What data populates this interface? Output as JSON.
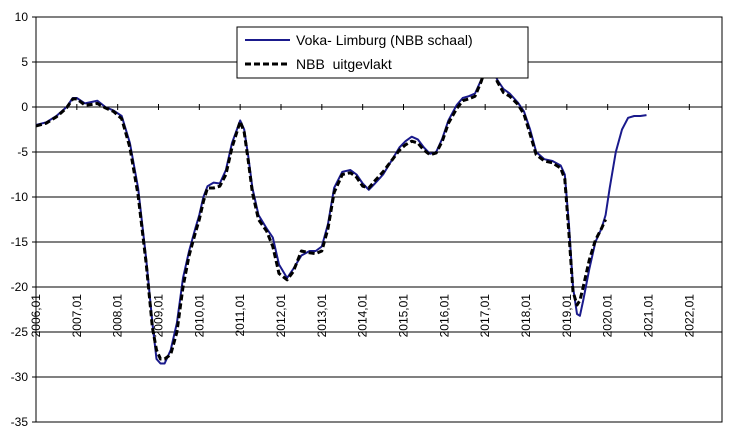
{
  "chart_data": {
    "type": "line",
    "title": "",
    "xlabel": "",
    "ylabel": "",
    "ylim": [
      -35,
      10
    ],
    "xlim": [
      2006.0,
      2022.8
    ],
    "y_ticks": [
      10,
      5,
      0,
      -5,
      -10,
      -15,
      -20,
      -25,
      -30,
      -35
    ],
    "x_ticks": [
      {
        "label": "2006,01",
        "x": 2006.0
      },
      {
        "label": "2007,01",
        "x": 2007.0
      },
      {
        "label": "2008,01",
        "x": 2008.0
      },
      {
        "label": "2009,01",
        "x": 2009.0
      },
      {
        "label": "2010,01",
        "x": 2010.0
      },
      {
        "label": "2011,01",
        "x": 2011.0
      },
      {
        "label": "2012,01",
        "x": 2012.0
      },
      {
        "label": "2013,01",
        "x": 2013.0
      },
      {
        "label": "2014,01",
        "x": 2014.0
      },
      {
        "label": "2015,01",
        "x": 2015.0
      },
      {
        "label": "2016,01",
        "x": 2016.0
      },
      {
        "label": "2017,01",
        "x": 2017.0
      },
      {
        "label": "2018,01",
        "x": 2018.0
      },
      {
        "label": "2019,01",
        "x": 2019.0
      },
      {
        "label": "2020,01",
        "x": 2020.0
      },
      {
        "label": "2021,01",
        "x": 2021.0
      },
      {
        "label": "2022,01",
        "x": 2022.0
      }
    ],
    "grid": "horizontal",
    "legend_position": "top-center",
    "series": [
      {
        "name": "Voka- Limburg (NBB schaal)",
        "color": "#1a1a8c",
        "style": "solid",
        "points": [
          [
            2006.0,
            -2.0
          ],
          [
            2006.25,
            -1.7
          ],
          [
            2006.5,
            -1.0
          ],
          [
            2006.75,
            0.0
          ],
          [
            2006.9,
            1.0
          ],
          [
            2007.0,
            1.0
          ],
          [
            2007.2,
            0.4
          ],
          [
            2007.4,
            0.6
          ],
          [
            2007.5,
            0.7
          ],
          [
            2007.7,
            0.0
          ],
          [
            2007.9,
            -0.4
          ],
          [
            2008.1,
            -1.0
          ],
          [
            2008.3,
            -4.0
          ],
          [
            2008.5,
            -9.0
          ],
          [
            2008.7,
            -17.0
          ],
          [
            2008.85,
            -24.0
          ],
          [
            2008.95,
            -28.0
          ],
          [
            2009.05,
            -28.5
          ],
          [
            2009.15,
            -28.5
          ],
          [
            2009.3,
            -27.0
          ],
          [
            2009.45,
            -24.0
          ],
          [
            2009.6,
            -19.0
          ],
          [
            2009.75,
            -16.0
          ],
          [
            2009.9,
            -13.5
          ],
          [
            2010.0,
            -12.0
          ],
          [
            2010.1,
            -10.0
          ],
          [
            2010.2,
            -8.8
          ],
          [
            2010.35,
            -8.4
          ],
          [
            2010.5,
            -8.5
          ],
          [
            2010.65,
            -7.0
          ],
          [
            2010.8,
            -4.0
          ],
          [
            2011.0,
            -1.5
          ],
          [
            2011.1,
            -2.5
          ],
          [
            2011.2,
            -5.5
          ],
          [
            2011.3,
            -9.0
          ],
          [
            2011.45,
            -12.0
          ],
          [
            2011.65,
            -13.5
          ],
          [
            2011.8,
            -14.5
          ],
          [
            2011.95,
            -17.5
          ],
          [
            2012.15,
            -19.0
          ],
          [
            2012.3,
            -18.0
          ],
          [
            2012.5,
            -16.5
          ],
          [
            2012.7,
            -16.0
          ],
          [
            2012.85,
            -16.0
          ],
          [
            2013.0,
            -15.5
          ],
          [
            2013.15,
            -13.0
          ],
          [
            2013.3,
            -9.0
          ],
          [
            2013.5,
            -7.2
          ],
          [
            2013.7,
            -7.0
          ],
          [
            2013.85,
            -7.5
          ],
          [
            2014.0,
            -8.5
          ],
          [
            2014.15,
            -9.2
          ],
          [
            2014.3,
            -8.5
          ],
          [
            2014.5,
            -7.5
          ],
          [
            2014.7,
            -6.0
          ],
          [
            2014.9,
            -4.5
          ],
          [
            2015.05,
            -3.8
          ],
          [
            2015.2,
            -3.3
          ],
          [
            2015.35,
            -3.6
          ],
          [
            2015.5,
            -4.5
          ],
          [
            2015.65,
            -5.2
          ],
          [
            2015.8,
            -5.0
          ],
          [
            2015.95,
            -3.5
          ],
          [
            2016.1,
            -1.5
          ],
          [
            2016.3,
            0.2
          ],
          [
            2016.45,
            1.0
          ],
          [
            2016.6,
            1.2
          ],
          [
            2016.75,
            1.5
          ],
          [
            2016.9,
            3.0
          ],
          [
            2017.0,
            4.0
          ],
          [
            2017.1,
            4.2
          ],
          [
            2017.2,
            4.0
          ],
          [
            2017.3,
            3.0
          ],
          [
            2017.45,
            2.0
          ],
          [
            2017.6,
            1.5
          ],
          [
            2017.8,
            0.5
          ],
          [
            2017.95,
            -0.5
          ],
          [
            2018.1,
            -2.5
          ],
          [
            2018.25,
            -5.0
          ],
          [
            2018.45,
            -5.8
          ],
          [
            2018.65,
            -6.0
          ],
          [
            2018.85,
            -6.5
          ],
          [
            2018.95,
            -7.5
          ],
          [
            2019.05,
            -13.0
          ],
          [
            2019.15,
            -20.0
          ],
          [
            2019.25,
            -23.0
          ],
          [
            2019.32,
            -23.2
          ],
          [
            2019.4,
            -21.5
          ],
          [
            2019.55,
            -18.0
          ],
          [
            2019.7,
            -15.0
          ],
          [
            2019.85,
            -13.5
          ],
          [
            2019.95,
            -12.0
          ],
          [
            2020.05,
            -9.0
          ],
          [
            2020.2,
            -5.0
          ],
          [
            2020.35,
            -2.5
          ],
          [
            2020.5,
            -1.2
          ],
          [
            2020.65,
            -1.0
          ],
          [
            2020.8,
            -1.0
          ],
          [
            2020.95,
            -0.9
          ]
        ]
      },
      {
        "name": "NBB  uitgevlakt",
        "color": "#000000",
        "style": "dashed",
        "points": [
          [
            2006.0,
            -2.1
          ],
          [
            2006.25,
            -1.8
          ],
          [
            2006.5,
            -1.1
          ],
          [
            2006.75,
            -0.1
          ],
          [
            2006.9,
            0.9
          ],
          [
            2007.0,
            0.9
          ],
          [
            2007.2,
            0.2
          ],
          [
            2007.4,
            0.3
          ],
          [
            2007.5,
            0.4
          ],
          [
            2007.7,
            -0.1
          ],
          [
            2007.9,
            -0.5
          ],
          [
            2008.1,
            -1.3
          ],
          [
            2008.3,
            -4.5
          ],
          [
            2008.5,
            -9.8
          ],
          [
            2008.7,
            -17.5
          ],
          [
            2008.85,
            -24.5
          ],
          [
            2008.95,
            -27.0
          ],
          [
            2009.05,
            -28.0
          ],
          [
            2009.15,
            -28.0
          ],
          [
            2009.3,
            -27.5
          ],
          [
            2009.45,
            -25.0
          ],
          [
            2009.6,
            -20.0
          ],
          [
            2009.75,
            -16.5
          ],
          [
            2009.9,
            -14.0
          ],
          [
            2010.0,
            -12.5
          ],
          [
            2010.1,
            -10.5
          ],
          [
            2010.2,
            -9.0
          ],
          [
            2010.35,
            -9.0
          ],
          [
            2010.5,
            -8.8
          ],
          [
            2010.65,
            -7.5
          ],
          [
            2010.8,
            -4.5
          ],
          [
            2011.0,
            -1.6
          ],
          [
            2011.1,
            -2.8
          ],
          [
            2011.2,
            -6.0
          ],
          [
            2011.3,
            -9.5
          ],
          [
            2011.45,
            -12.5
          ],
          [
            2011.65,
            -13.8
          ],
          [
            2011.8,
            -15.5
          ],
          [
            2011.95,
            -18.5
          ],
          [
            2012.15,
            -19.2
          ],
          [
            2012.3,
            -18.3
          ],
          [
            2012.5,
            -16.0
          ],
          [
            2012.7,
            -16.2
          ],
          [
            2012.85,
            -16.3
          ],
          [
            2013.0,
            -16.0
          ],
          [
            2013.15,
            -13.5
          ],
          [
            2013.3,
            -9.5
          ],
          [
            2013.5,
            -7.5
          ],
          [
            2013.7,
            -7.3
          ],
          [
            2013.85,
            -7.8
          ],
          [
            2014.0,
            -8.8
          ],
          [
            2014.15,
            -9.0
          ],
          [
            2014.3,
            -8.2
          ],
          [
            2014.5,
            -7.2
          ],
          [
            2014.7,
            -6.0
          ],
          [
            2014.9,
            -4.8
          ],
          [
            2015.05,
            -4.2
          ],
          [
            2015.2,
            -3.8
          ],
          [
            2015.35,
            -4.0
          ],
          [
            2015.5,
            -4.8
          ],
          [
            2015.65,
            -5.3
          ],
          [
            2015.8,
            -5.1
          ],
          [
            2015.95,
            -3.8
          ],
          [
            2016.1,
            -1.8
          ],
          [
            2016.3,
            -0.2
          ],
          [
            2016.45,
            0.7
          ],
          [
            2016.6,
            0.9
          ],
          [
            2016.75,
            1.2
          ],
          [
            2016.9,
            2.8
          ],
          [
            2017.0,
            4.2
          ],
          [
            2017.1,
            4.5
          ],
          [
            2017.2,
            4.0
          ],
          [
            2017.3,
            2.8
          ],
          [
            2017.45,
            1.6
          ],
          [
            2017.6,
            1.2
          ],
          [
            2017.8,
            0.3
          ],
          [
            2017.95,
            -0.8
          ],
          [
            2018.1,
            -3.0
          ],
          [
            2018.25,
            -5.3
          ],
          [
            2018.45,
            -6.0
          ],
          [
            2018.65,
            -6.2
          ],
          [
            2018.85,
            -6.8
          ],
          [
            2018.95,
            -8.0
          ],
          [
            2019.05,
            -14.0
          ],
          [
            2019.15,
            -20.5
          ],
          [
            2019.25,
            -22.0
          ],
          [
            2019.32,
            -21.5
          ],
          [
            2019.4,
            -20.0
          ],
          [
            2019.55,
            -17.0
          ],
          [
            2019.7,
            -14.8
          ],
          [
            2019.85,
            -13.5
          ],
          [
            2019.95,
            -12.5
          ]
        ]
      }
    ]
  }
}
